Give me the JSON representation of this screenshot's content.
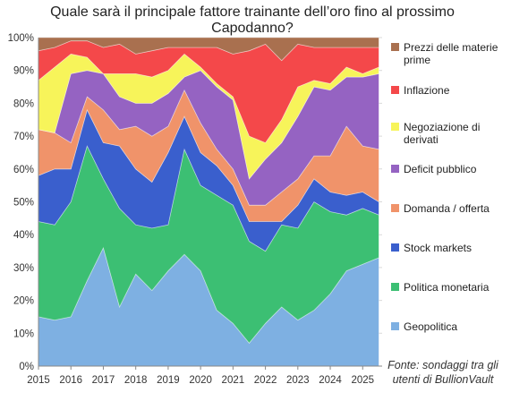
{
  "chart_data": {
    "type": "area",
    "stacked": true,
    "percent": true,
    "title_lines": [
      "Quale sarà il principale fattore trainante dell’oro fino al prossimo",
      "Capodanno?"
    ],
    "xlabel": "",
    "ylabel": "",
    "xlim": [
      2015,
      2025.6
    ],
    "ylim": [
      0,
      100
    ],
    "x_ticks": [
      "2015",
      "2016",
      "2017",
      "2018",
      "2019",
      "2020",
      "2021",
      "2022",
      "2023",
      "2024",
      "2025"
    ],
    "y_ticks": [
      "0%",
      "10%",
      "20%",
      "30%",
      "40%",
      "50%",
      "60%",
      "70%",
      "80%",
      "90%",
      "100%"
    ],
    "grid": "horizontal",
    "legend_position": "right",
    "source_lines": [
      "Fonte: sondaggi tra gli",
      "utenti di BullionVault"
    ],
    "x": [
      2015.0,
      2015.5,
      2016.0,
      2016.5,
      2017.0,
      2017.5,
      2018.0,
      2018.5,
      2019.0,
      2019.5,
      2020.0,
      2020.5,
      2021.0,
      2021.5,
      2022.0,
      2022.5,
      2023.0,
      2023.5,
      2024.0,
      2024.5,
      2025.0,
      2025.5
    ],
    "series": [
      {
        "name": "Geopolitica",
        "color": "#7eb0e2",
        "values": [
          15,
          14,
          15,
          26,
          36,
          18,
          28,
          23,
          29,
          34,
          29,
          17,
          13,
          7,
          13,
          18,
          14,
          17,
          22,
          29,
          31,
          33
        ]
      },
      {
        "name": "Politica monetaria",
        "color": "#3cbf73",
        "values": [
          29,
          29,
          35,
          41,
          21,
          30,
          15,
          19,
          14,
          32,
          26,
          35,
          36,
          31,
          22,
          25,
          28,
          33,
          25,
          17,
          17,
          13
        ]
      },
      {
        "name": "Stock markets",
        "color": "#3a5fcd",
        "values": [
          14,
          17,
          10,
          11,
          11,
          19,
          17,
          14,
          22,
          10,
          10,
          9,
          6,
          6,
          9,
          1,
          7,
          7,
          6,
          6,
          5,
          4
        ]
      },
      {
        "name": "Domanda / offerta",
        "color": "#f0936a",
        "values": [
          14,
          11,
          8,
          4,
          10,
          5,
          13,
          14,
          8,
          8,
          9,
          5,
          5,
          5,
          5,
          9,
          8,
          7,
          11,
          21,
          14,
          16
        ]
      },
      {
        "name": "Deficit pubblico",
        "color": "#9563c2",
        "values": [
          0,
          0,
          21,
          8,
          11,
          10,
          7,
          10,
          10,
          4,
          16,
          19,
          21,
          8,
          14,
          15,
          19,
          21,
          20,
          15,
          21,
          23
        ]
      },
      {
        "name": "Negoziazione di derivati",
        "color": "#f7f45a",
        "values": [
          15,
          20,
          6,
          4,
          0,
          7,
          9,
          8,
          7,
          7,
          1,
          1,
          1,
          13,
          5,
          7,
          9,
          2,
          2,
          3,
          1,
          2
        ]
      },
      {
        "name": "Inflazione",
        "color": "#f4484a",
        "values": [
          9,
          6,
          4,
          5,
          8,
          9,
          6,
          8,
          7,
          2,
          6,
          11,
          13,
          26,
          30,
          18,
          13,
          10,
          11,
          6,
          8,
          6
        ]
      },
      {
        "name": "Prezzi delle materie prime",
        "color": "#a9704f",
        "values": [
          4,
          3,
          1,
          1,
          3,
          2,
          5,
          4,
          3,
          3,
          3,
          3,
          5,
          4,
          2,
          7,
          2,
          3,
          3,
          3,
          3,
          3
        ]
      }
    ],
    "legend_lines": [
      [
        "Prezzi delle materie",
        "prime"
      ],
      [
        "Inflazione"
      ],
      [
        "Negoziazione di",
        "derivati"
      ],
      [
        "Deficit pubblico"
      ],
      [
        "Domanda / offerta"
      ],
      [
        "Stock markets"
      ],
      [
        "Politica monetaria"
      ],
      [
        "Geopolitica"
      ]
    ],
    "legend_colors": [
      "#a9704f",
      "#f4484a",
      "#f7f45a",
      "#9563c2",
      "#f0936a",
      "#3a5fcd",
      "#3cbf73",
      "#7eb0e2"
    ]
  }
}
